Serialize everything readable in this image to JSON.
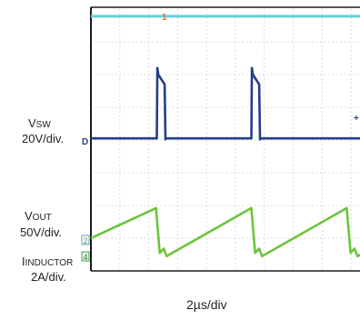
{
  "chart_data": {
    "type": "line",
    "title": "",
    "time_scale": "2µs/div",
    "grid": true,
    "channel_markers": {
      "ch1": "1",
      "ch2": "2",
      "ch3": "4",
      "trigger": "D"
    },
    "labels": {
      "vsw": {
        "prefix": "V",
        "sub": "SW",
        "scale": "20V/div."
      },
      "vout": {
        "prefix": "V",
        "sub": "OUT",
        "scale": "50V/div."
      },
      "inductor": {
        "prefix": "I",
        "sub": "INDUCTOR",
        "scale": "2A/div."
      }
    },
    "x_divisions": [
      0,
      10
    ],
    "y_divisions": [
      0,
      8
    ],
    "series": [
      {
        "name": "",
        "color": "#5fd0dc",
        "x": [
          0,
          10
        ],
        "y": [
          7.78,
          7.78
        ]
      },
      {
        "name": "VSW",
        "color": "#243d8c",
        "x": [
          0,
          2.28,
          2.3,
          2.33,
          2.55,
          2.58,
          2.62,
          5.55,
          5.57,
          5.6,
          5.82,
          5.85,
          5.9,
          10
        ],
        "y": [
          4.05,
          4.05,
          6.2,
          6.0,
          5.7,
          4.02,
          4.05,
          4.05,
          6.2,
          6.0,
          5.7,
          4.02,
          4.05,
          4.05
        ]
      },
      {
        "name": "IINDUCTOR",
        "color": "#6cc43c",
        "x": [
          0,
          2.25,
          2.38,
          2.52,
          2.62,
          5.55,
          5.68,
          5.82,
          5.92,
          8.85,
          8.98,
          9.12,
          9.22,
          10
        ],
        "y": [
          1.0,
          1.92,
          0.55,
          0.68,
          0.45,
          1.92,
          0.55,
          0.68,
          0.45,
          1.92,
          0.55,
          0.68,
          0.45,
          0.8
        ]
      }
    ]
  }
}
